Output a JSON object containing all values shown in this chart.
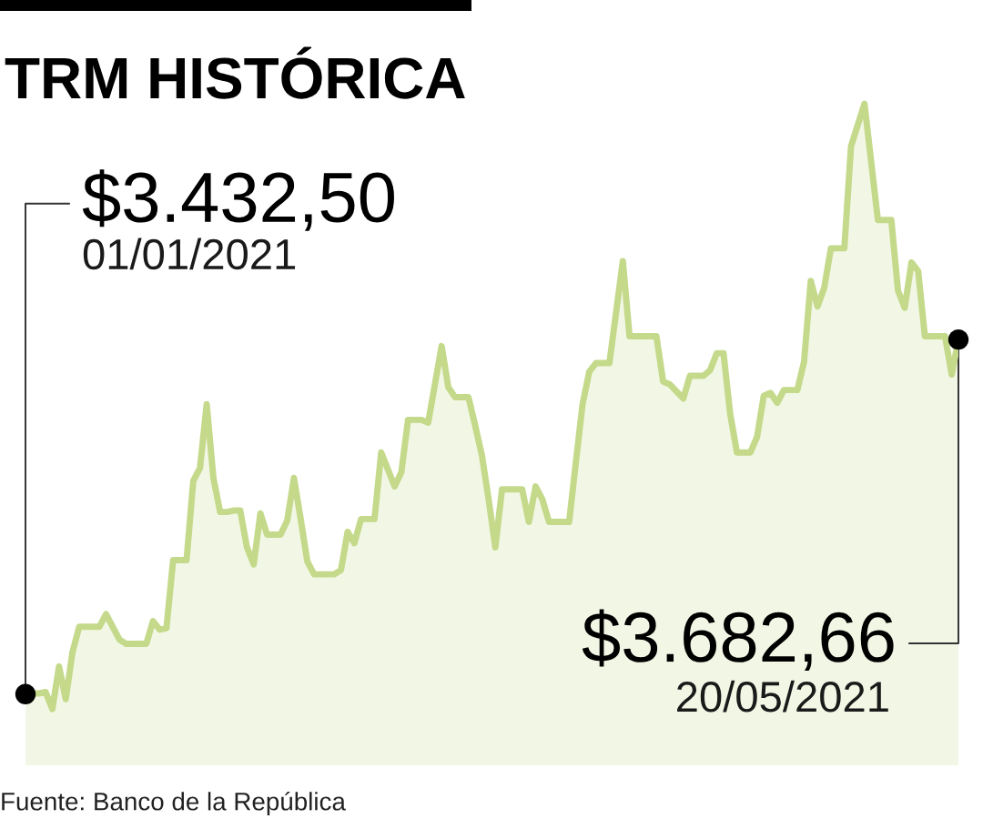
{
  "chart_data": {
    "type": "area",
    "title": "TRM HISTÓRICA",
    "categories": [
      null,
      null,
      null,
      null,
      null,
      null,
      null,
      null,
      null,
      null,
      null,
      null,
      null,
      null,
      null,
      null,
      null,
      null,
      null,
      null,
      null,
      null,
      null,
      null,
      null,
      null,
      null,
      null,
      null,
      null,
      null,
      null,
      null,
      null,
      null,
      null,
      null,
      null,
      null,
      null,
      null,
      null,
      null,
      null,
      null,
      null,
      null,
      null,
      null,
      null,
      null,
      null,
      null,
      null,
      null,
      null,
      null,
      null,
      null,
      null,
      null,
      null,
      null,
      null,
      null,
      null,
      null,
      null,
      null,
      null,
      null,
      null,
      null,
      null,
      null,
      null,
      null,
      null,
      null,
      null,
      null,
      null,
      null,
      null,
      null,
      null,
      null,
      null,
      null,
      null,
      null,
      null,
      null,
      null,
      null,
      null,
      null,
      null,
      null,
      null,
      null,
      null,
      null,
      null,
      null,
      null,
      null,
      null,
      null,
      null,
      null,
      null,
      null,
      null,
      null,
      null,
      null,
      null,
      null,
      null,
      null,
      null,
      null,
      null,
      null,
      null,
      null,
      null,
      null,
      null,
      null,
      null,
      null,
      null,
      null,
      null,
      null,
      null,
      null,
      null
    ],
    "series": [
      {
        "color": "#c4d98a",
        "values": [
          3432.5,
          3433,
          3433,
          3434,
          3422,
          3452,
          3429,
          3462,
          3480,
          3480,
          3480,
          3480,
          3489,
          3480,
          3471,
          3468,
          3468,
          3468,
          3468,
          3484,
          3478,
          3479,
          3527,
          3527,
          3527,
          3583,
          3592,
          3637,
          3585,
          3561,
          3561,
          3562,
          3562,
          3536,
          3524,
          3560,
          3545,
          3545,
          3545,
          3555,
          3585,
          3556,
          3526,
          3517,
          3517,
          3517,
          3517,
          3520,
          3547,
          3539,
          3556,
          3556,
          3556,
          3603,
          3591,
          3579,
          3589,
          3626,
          3626,
          3626,
          3624,
          3651,
          3678,
          3649,
          3642,
          3642,
          3642,
          3622,
          3601,
          3570,
          3536,
          3577,
          3577,
          3577,
          3577,
          3554,
          3579,
          3570,
          3554,
          3554,
          3554,
          3554,
          3596,
          3637,
          3660,
          3666,
          3666,
          3666,
          3702,
          3738,
          3685,
          3685,
          3685,
          3685,
          3685,
          3653,
          3651,
          3646,
          3641,
          3657,
          3657,
          3657,
          3661,
          3673,
          3673,
          3630,
          3603,
          3603,
          3603,
          3614,
          3643,
          3645,
          3638,
          3647,
          3647,
          3647,
          3667,
          3724,
          3706,
          3719,
          3747,
          3747,
          3747,
          3819,
          3834,
          3849,
          3808,
          3767,
          3767,
          3767,
          3717,
          3705,
          3737,
          3731,
          3685,
          3685,
          3685,
          3685,
          3658,
          3682.66
        ],
        "value_labels": [
          "$3.432,50",
          null,
          null,
          null,
          null,
          null,
          null,
          null,
          null,
          null,
          null,
          null,
          null,
          null,
          null,
          null,
          null,
          null,
          null,
          null,
          null,
          null,
          null,
          null,
          null,
          null,
          null,
          null,
          null,
          null,
          null,
          null,
          null,
          null,
          null,
          null,
          null,
          null,
          null,
          null,
          null,
          null,
          null,
          null,
          null,
          null,
          null,
          null,
          null,
          null,
          null,
          null,
          null,
          null,
          null,
          null,
          null,
          null,
          null,
          null,
          null,
          null,
          null,
          null,
          null,
          null,
          null,
          null,
          null,
          null,
          null,
          null,
          null,
          null,
          null,
          null,
          null,
          null,
          null,
          null,
          null,
          null,
          null,
          null,
          null,
          null,
          null,
          null,
          null,
          null,
          null,
          null,
          null,
          null,
          null,
          null,
          null,
          null,
          null,
          null,
          null,
          null,
          null,
          null,
          null,
          null,
          null,
          null,
          null,
          null,
          null,
          null,
          null,
          null,
          null,
          null,
          null,
          null,
          null,
          null,
          null,
          null,
          null,
          null,
          null,
          null,
          null,
          null,
          null,
          null,
          null,
          null,
          null,
          null,
          null,
          null,
          null,
          null,
          null,
          "$3.682,66"
        ]
      }
    ],
    "annotations": [
      "01/01/2021",
      "20/05/2021",
      "Fuente: Banco de la República"
    ]
  }
}
